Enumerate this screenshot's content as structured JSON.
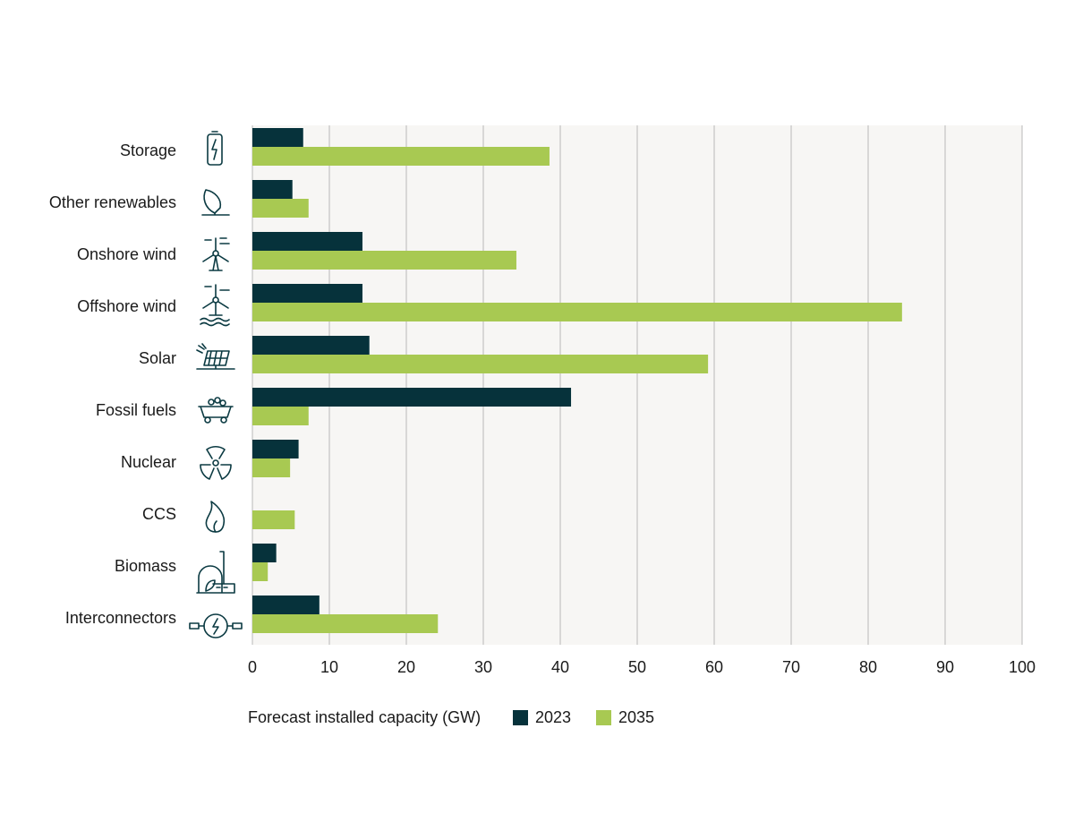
{
  "chart_data": {
    "type": "hbar",
    "x_label": "Forecast installed capacity (GW)",
    "categories": [
      "Storage",
      "Other renewables",
      "Onshore wind",
      "Offshore wind",
      "Solar",
      "Fossil fuels",
      "Nuclear",
      "CCS",
      "Biomass",
      "Interconnectors"
    ],
    "series": [
      {
        "name": "2023",
        "color": "#06323b",
        "values": [
          6.6,
          5.2,
          14.3,
          14.3,
          15.2,
          41.4,
          6.0,
          0,
          3.1,
          8.7
        ]
      },
      {
        "name": "2035",
        "color": "#a8c952",
        "values": [
          38.6,
          7.3,
          34.3,
          84.4,
          59.2,
          7.3,
          4.9,
          5.5,
          2.0,
          24.1
        ]
      }
    ],
    "xlim": [
      0,
      100
    ],
    "xticks": [
      0,
      10,
      20,
      30,
      40,
      50,
      60,
      70,
      80,
      90,
      100
    ],
    "grid": true
  }
}
